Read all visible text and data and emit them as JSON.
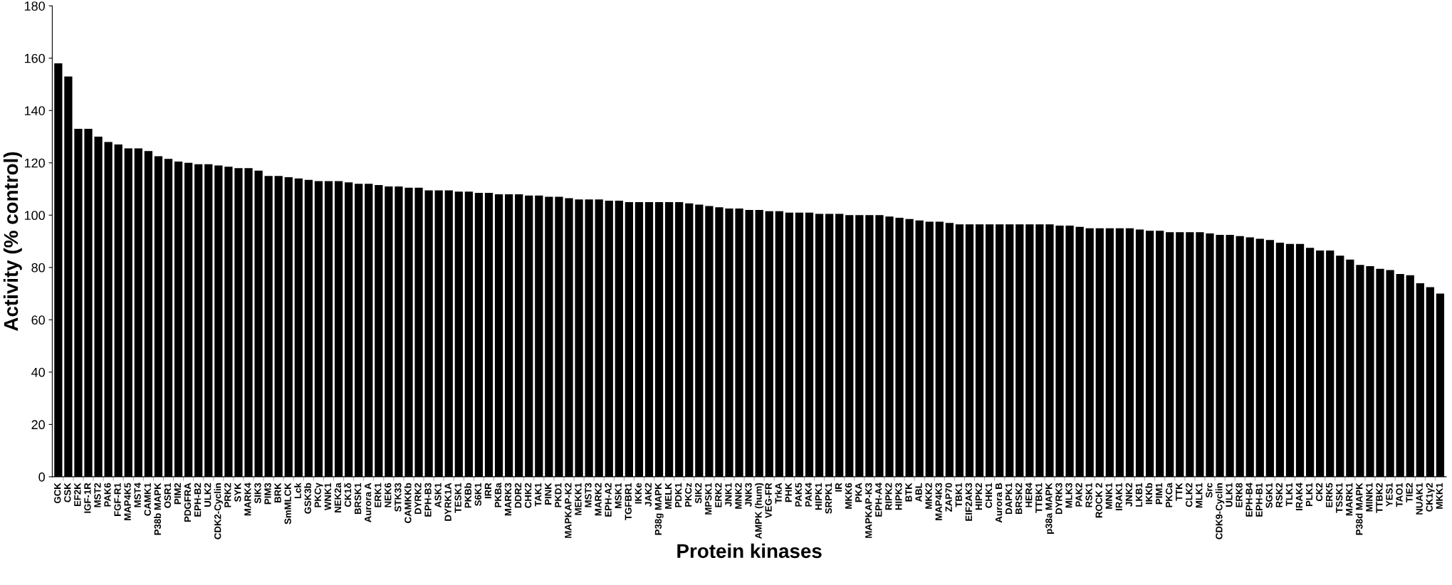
{
  "chart_data": {
    "type": "bar",
    "xlabel": "Protein kinases",
    "ylabel": "Activity (% control)",
    "color": "#000000",
    "ylim": [
      0,
      180
    ],
    "yticks": [
      0,
      20,
      40,
      60,
      80,
      100,
      120,
      140,
      160,
      180
    ],
    "grid": false,
    "legend": false,
    "categories": [
      "GCK",
      "CSK",
      "EF2K",
      "IGF-1R",
      "MST2",
      "PAK6",
      "FGF-R1",
      "MAP4K5",
      "MST4",
      "CAMK1",
      "P38b MAPK",
      "OSR1",
      "PIM2",
      "PDGFRA",
      "EPH-B2",
      "ULK2",
      "CDK2-Cyclin",
      "PRK2",
      "SYK",
      "MARK4",
      "SIK3",
      "PIM3",
      "BRK",
      "SmMLCK",
      "Lck",
      "GSK3b",
      "PKCγ",
      "WNK1",
      "NEK2a",
      "CK1δ",
      "BRSK1",
      "Aurora A",
      "ERK1",
      "NEK6",
      "STK33",
      "CAMKKb",
      "DYRK2",
      "EPH-B3",
      "ASK1",
      "DYRK1A",
      "TESK1",
      "PKBb",
      "S6K1",
      "IRR",
      "PKBa",
      "MARK3",
      "DDR2",
      "CHK2",
      "TAK1",
      "PINK",
      "PKD1",
      "MAPKAP-K2",
      "MEKK1",
      "MST3",
      "MARK2",
      "EPH-A2",
      "MSK1",
      "TGFBR1",
      "IKKe",
      "JAK2",
      "P38g MAPK",
      "MELK",
      "PDK1",
      "PKCz",
      "SIK2",
      "MPSK1",
      "ERK2",
      "JNK1",
      "MNK2",
      "JNK3",
      "AMPK (hum)",
      "VEG-FR",
      "TrkA",
      "PHK",
      "PAK5",
      "PAK4",
      "HIPK1",
      "SRPK1",
      "IR",
      "MKK6",
      "PKA",
      "MAPKAP-K3",
      "EPH-A4",
      "RIPK2",
      "HIPK3",
      "BTK",
      "ABL",
      "MKK2",
      "MAP4K3",
      "ZAP70",
      "TBK1",
      "EIF2AK3",
      "HIPK2",
      "CHK1",
      "Aurora B",
      "DAPK1",
      "BRSK2",
      "HER4",
      "TTBK1",
      "p38a MAPK",
      "DYRK3",
      "MLK3",
      "PAK2",
      "RSK1",
      "ROCK 2",
      "MNK1",
      "IRAK1",
      "JNK2",
      "LKB1",
      "IKKb",
      "PIM1",
      "PKCa",
      "TTK",
      "CLK2",
      "MLK1",
      "Src",
      "CDK9-Cyclin",
      "ULK1",
      "ERK8",
      "EPH-B4",
      "EPH-B1",
      "SGK1",
      "RSK2",
      "TLK1",
      "IRAK4",
      "PLK1",
      "CK2",
      "ERK5",
      "TSSK1",
      "MARK1",
      "P38d MAPK",
      "MINK1",
      "TTBK2",
      "YES1",
      "TAO1",
      "TIE2",
      "NUAK1",
      "CK1γ2",
      "MKK1"
    ],
    "values": [
      158,
      153,
      133,
      133,
      130,
      128,
      127,
      125.5,
      125.5,
      124.5,
      122.5,
      121.5,
      120.5,
      120,
      119.5,
      119.5,
      119,
      118.5,
      118,
      118,
      117,
      115,
      115,
      114.5,
      114,
      113.5,
      113,
      113,
      113,
      112.5,
      112,
      112,
      111.5,
      111,
      111,
      110.5,
      110.5,
      109.5,
      109.5,
      109.5,
      109,
      109,
      108.5,
      108.5,
      108,
      108,
      108,
      107.5,
      107.5,
      107,
      107,
      106.5,
      106,
      106,
      106,
      105.5,
      105.5,
      105,
      105,
      105,
      105,
      105,
      105,
      104.5,
      104,
      103.5,
      103,
      102.5,
      102.5,
      102,
      102,
      101.5,
      101.5,
      101,
      101,
      101,
      100.5,
      100.5,
      100.5,
      100,
      100,
      100,
      100,
      99.5,
      99,
      98.5,
      98,
      97.5,
      97.5,
      97,
      96.5,
      96.5,
      96.5,
      96.5,
      96.5,
      96.5,
      96.5,
      96.5,
      96.5,
      96.5,
      96,
      96,
      95.5,
      95,
      95,
      95,
      95,
      95,
      94.5,
      94,
      94,
      93.5,
      93.5,
      93.5,
      93.5,
      93,
      92.5,
      92.5,
      92,
      91.5,
      91,
      90.5,
      89.5,
      89,
      89,
      87.5,
      86.5,
      86.5,
      84.5,
      83,
      81,
      80.5,
      79.5,
      79,
      77.5,
      77,
      74,
      72.5,
      70
    ]
  }
}
